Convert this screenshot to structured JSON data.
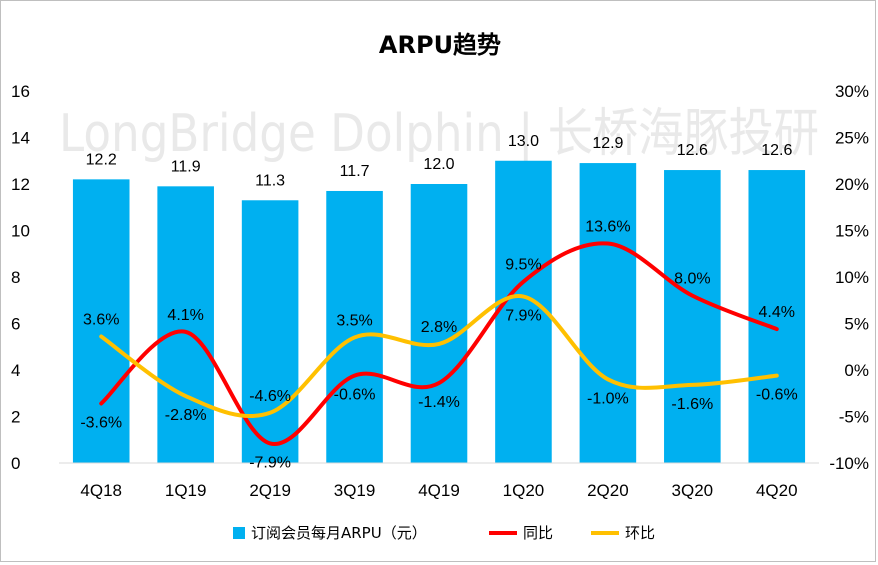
{
  "chart_data": {
    "type": "bar",
    "title": "ARPU趋势",
    "categories": [
      "4Q18",
      "1Q19",
      "2Q19",
      "3Q19",
      "4Q19",
      "1Q20",
      "2Q20",
      "3Q20",
      "4Q20"
    ],
    "series": [
      {
        "name": "订阅会员每月ARPU（元）",
        "type": "bar",
        "axis": "left",
        "color": "#00b0f0",
        "values": [
          12.2,
          11.9,
          11.3,
          11.7,
          12.0,
          13.0,
          12.9,
          12.6,
          12.6
        ],
        "labels": [
          "12.2",
          "11.9",
          "11.3",
          "11.7",
          "12.0",
          "13.0",
          "12.9",
          "12.6",
          "12.6"
        ]
      },
      {
        "name": "同比",
        "type": "line",
        "axis": "right",
        "color": "#ff0000",
        "values": [
          -3.6,
          4.1,
          -7.9,
          -0.6,
          -1.4,
          9.5,
          13.6,
          8.0,
          4.4
        ],
        "labels": [
          "-3.6%",
          "4.1%",
          "-7.9%",
          "-0.6%",
          "-1.4%",
          "9.5%",
          "13.6%",
          "8.0%",
          "4.4%"
        ]
      },
      {
        "name": "环比",
        "type": "line",
        "axis": "right",
        "color": "#ffc000",
        "values": [
          3.6,
          -2.8,
          -4.6,
          3.5,
          2.8,
          7.9,
          -1.0,
          -1.6,
          -0.6
        ],
        "labels": [
          "3.6%",
          "-2.8%",
          "-4.6%",
          "3.5%",
          "2.8%",
          "7.9%",
          "-1.0%",
          "-1.6%",
          "-0.6%"
        ]
      }
    ],
    "y_left": {
      "min": 0,
      "max": 16,
      "step": 2,
      "ticks": [
        "0",
        "2",
        "4",
        "6",
        "8",
        "10",
        "12",
        "14",
        "16"
      ]
    },
    "y_right": {
      "min": -10,
      "max": 30,
      "step": 5,
      "ticks": [
        "-10%",
        "-5%",
        "0%",
        "5%",
        "10%",
        "15%",
        "20%",
        "25%",
        "30%"
      ]
    },
    "grid": false,
    "legend": "bottom",
    "watermark": "LongBridge Dolphin | 长桥海豚投研"
  }
}
